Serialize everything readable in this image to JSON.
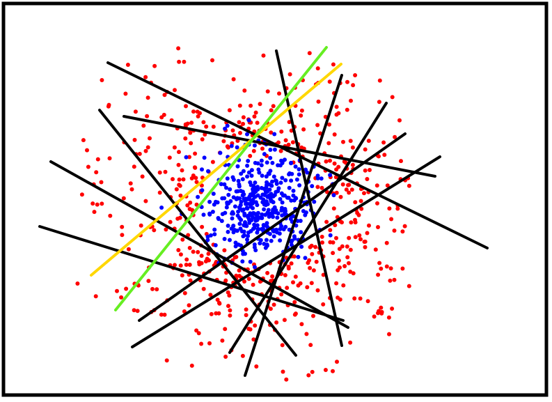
{
  "colors": {
    "outer_class": "#ff0000",
    "inner_class": "#0000ff",
    "candidate_line": "#000000",
    "highlight_line_1": "#ffd700",
    "highlight_line_2": "#66ee22",
    "frame": "#000000",
    "background": "#ffffff"
  },
  "point_counts": {
    "outer_class": 560,
    "inner_class": 430
  }
}
